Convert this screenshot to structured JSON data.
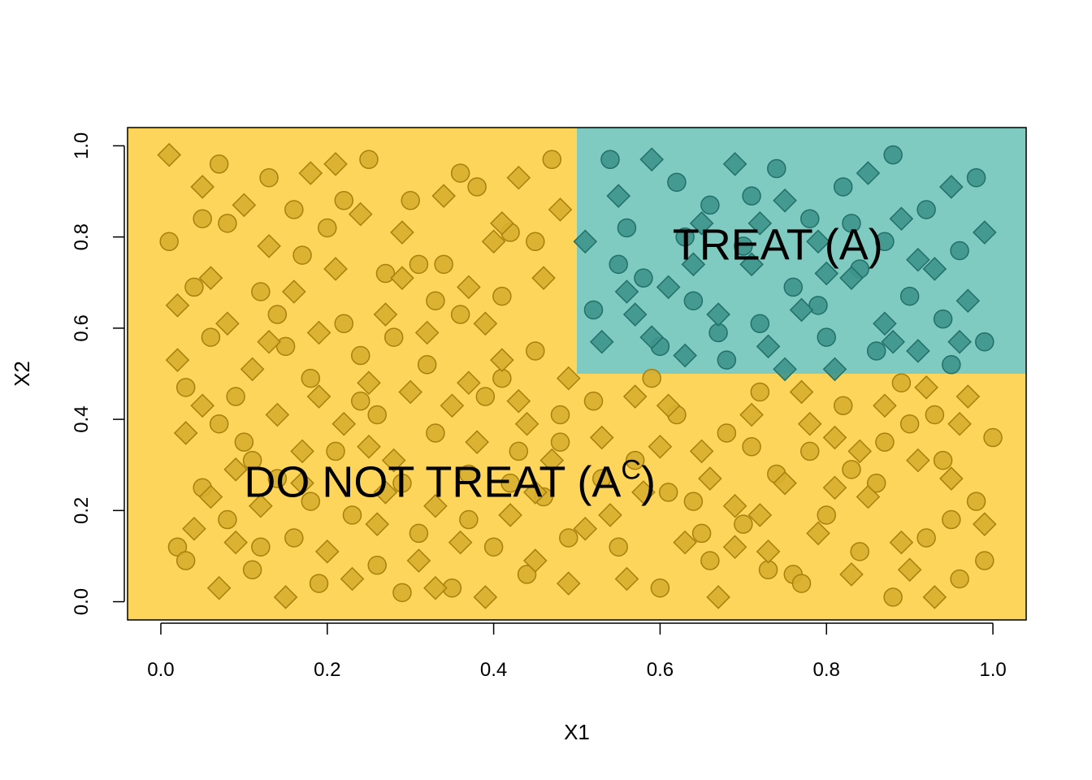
{
  "chart_data": {
    "type": "scatter",
    "title": "",
    "xlabel": "X1",
    "ylabel": "X2",
    "xlim": [
      -0.04,
      1.04
    ],
    "ylim": [
      -0.04,
      1.04
    ],
    "x_ticks": [
      "0.0",
      "0.2",
      "0.4",
      "0.6",
      "0.8",
      "1.0"
    ],
    "y_ticks": [
      "0.0",
      "0.2",
      "0.4",
      "0.6",
      "0.8",
      "1.0"
    ],
    "grid": false,
    "legend": "none",
    "regions": [
      {
        "label": "DO NOT TREAT (A",
        "superscript": "C",
        "label_end": ")",
        "x": [
          0.0,
          1.0
        ],
        "y": [
          0.0,
          1.0
        ],
        "color": "#FDD55A",
        "anchor_x": 0.1,
        "anchor_y": 0.23
      },
      {
        "label": "TREAT (A)",
        "x": [
          0.5,
          1.0
        ],
        "y": [
          0.5,
          1.0
        ],
        "color": "#7FCBC2",
        "anchor_x": 0.615,
        "anchor_y": 0.75
      }
    ],
    "point_colors": {
      "outside": {
        "fill": "#D8AE2E",
        "stroke": "#A8800C"
      },
      "inside": {
        "fill": "#3E958B",
        "stroke": "#22706A"
      }
    },
    "series": [
      {
        "marker": "circle",
        "points": [
          [
            0.01,
            0.79
          ],
          [
            0.02,
            0.12
          ],
          [
            0.03,
            0.09
          ],
          [
            0.04,
            0.69
          ],
          [
            0.05,
            0.84
          ],
          [
            0.05,
            0.25
          ],
          [
            0.06,
            0.58
          ],
          [
            0.07,
            0.39
          ],
          [
            0.08,
            0.83
          ],
          [
            0.09,
            0.45
          ],
          [
            0.1,
            0.35
          ],
          [
            0.11,
            0.07
          ],
          [
            0.12,
            0.68
          ],
          [
            0.13,
            0.93
          ],
          [
            0.14,
            0.27
          ],
          [
            0.15,
            0.56
          ],
          [
            0.16,
            0.14
          ],
          [
            0.17,
            0.76
          ],
          [
            0.18,
            0.49
          ],
          [
            0.19,
            0.04
          ],
          [
            0.2,
            0.82
          ],
          [
            0.21,
            0.33
          ],
          [
            0.22,
            0.61
          ],
          [
            0.23,
            0.19
          ],
          [
            0.24,
            0.44
          ],
          [
            0.25,
            0.97
          ],
          [
            0.26,
            0.08
          ],
          [
            0.27,
            0.72
          ],
          [
            0.28,
            0.58
          ],
          [
            0.29,
            0.26
          ],
          [
            0.3,
            0.88
          ],
          [
            0.31,
            0.15
          ],
          [
            0.32,
            0.52
          ],
          [
            0.33,
            0.37
          ],
          [
            0.34,
            0.74
          ],
          [
            0.35,
            0.03
          ],
          [
            0.36,
            0.63
          ],
          [
            0.37,
            0.28
          ],
          [
            0.38,
            0.91
          ],
          [
            0.39,
            0.45
          ],
          [
            0.4,
            0.12
          ],
          [
            0.41,
            0.67
          ],
          [
            0.42,
            0.81
          ],
          [
            0.43,
            0.33
          ],
          [
            0.44,
            0.06
          ],
          [
            0.45,
            0.55
          ],
          [
            0.46,
            0.23
          ],
          [
            0.47,
            0.97
          ],
          [
            0.48,
            0.41
          ],
          [
            0.49,
            0.14
          ],
          [
            0.03,
            0.47
          ],
          [
            0.07,
            0.96
          ],
          [
            0.11,
            0.31
          ],
          [
            0.14,
            0.63
          ],
          [
            0.18,
            0.22
          ],
          [
            0.22,
            0.88
          ],
          [
            0.26,
            0.41
          ],
          [
            0.29,
            0.02
          ],
          [
            0.33,
            0.66
          ],
          [
            0.37,
            0.18
          ],
          [
            0.41,
            0.49
          ],
          [
            0.45,
            0.79
          ],
          [
            0.48,
            0.35
          ],
          [
            0.12,
            0.12
          ],
          [
            0.24,
            0.54
          ],
          [
            0.36,
            0.94
          ],
          [
            0.08,
            0.18
          ],
          [
            0.42,
            0.26
          ],
          [
            0.16,
            0.86
          ],
          [
            0.31,
            0.74
          ],
          [
            0.52,
            0.44
          ],
          [
            0.55,
            0.12
          ],
          [
            0.57,
            0.31
          ],
          [
            0.6,
            0.03
          ],
          [
            0.62,
            0.41
          ],
          [
            0.64,
            0.22
          ],
          [
            0.66,
            0.09
          ],
          [
            0.68,
            0.37
          ],
          [
            0.7,
            0.17
          ],
          [
            0.72,
            0.46
          ],
          [
            0.74,
            0.28
          ],
          [
            0.76,
            0.06
          ],
          [
            0.78,
            0.33
          ],
          [
            0.8,
            0.19
          ],
          [
            0.82,
            0.43
          ],
          [
            0.84,
            0.11
          ],
          [
            0.86,
            0.26
          ],
          [
            0.88,
            0.01
          ],
          [
            0.9,
            0.39
          ],
          [
            0.92,
            0.14
          ],
          [
            0.94,
            0.31
          ],
          [
            0.96,
            0.05
          ],
          [
            0.98,
            0.22
          ],
          [
            1.0,
            0.36
          ],
          [
            0.53,
            0.27
          ],
          [
            0.59,
            0.49
          ],
          [
            0.65,
            0.15
          ],
          [
            0.71,
            0.34
          ],
          [
            0.77,
            0.04
          ],
          [
            0.83,
            0.29
          ],
          [
            0.89,
            0.48
          ],
          [
            0.95,
            0.18
          ],
          [
            0.99,
            0.09
          ],
          [
            0.61,
            0.24
          ],
          [
            0.73,
            0.07
          ],
          [
            0.87,
            0.35
          ],
          [
            0.93,
            0.41
          ],
          [
            0.52,
            0.64
          ],
          [
            0.54,
            0.97
          ],
          [
            0.56,
            0.82
          ],
          [
            0.58,
            0.71
          ],
          [
            0.6,
            0.56
          ],
          [
            0.62,
            0.92
          ],
          [
            0.64,
            0.66
          ],
          [
            0.66,
            0.87
          ],
          [
            0.68,
            0.53
          ],
          [
            0.7,
            0.78
          ],
          [
            0.72,
            0.61
          ],
          [
            0.74,
            0.95
          ],
          [
            0.76,
            0.69
          ],
          [
            0.78,
            0.84
          ],
          [
            0.8,
            0.58
          ],
          [
            0.82,
            0.91
          ],
          [
            0.84,
            0.73
          ],
          [
            0.86,
            0.55
          ],
          [
            0.88,
            0.98
          ],
          [
            0.9,
            0.67
          ],
          [
            0.92,
            0.86
          ],
          [
            0.94,
            0.62
          ],
          [
            0.96,
            0.77
          ],
          [
            0.98,
            0.93
          ],
          [
            0.99,
            0.57
          ],
          [
            0.55,
            0.74
          ],
          [
            0.63,
            0.8
          ],
          [
            0.71,
            0.89
          ],
          [
            0.79,
            0.65
          ],
          [
            0.87,
            0.79
          ],
          [
            0.95,
            0.52
          ],
          [
            0.67,
            0.59
          ],
          [
            0.83,
            0.83
          ]
        ]
      },
      {
        "marker": "diamond",
        "points": [
          [
            0.01,
            0.98
          ],
          [
            0.02,
            0.53
          ],
          [
            0.03,
            0.37
          ],
          [
            0.04,
            0.16
          ],
          [
            0.05,
            0.91
          ],
          [
            0.06,
            0.71
          ],
          [
            0.07,
            0.03
          ],
          [
            0.08,
            0.61
          ],
          [
            0.09,
            0.29
          ],
          [
            0.1,
            0.87
          ],
          [
            0.11,
            0.51
          ],
          [
            0.12,
            0.21
          ],
          [
            0.13,
            0.78
          ],
          [
            0.14,
            0.41
          ],
          [
            0.15,
            0.01
          ],
          [
            0.16,
            0.68
          ],
          [
            0.17,
            0.33
          ],
          [
            0.18,
            0.94
          ],
          [
            0.19,
            0.59
          ],
          [
            0.2,
            0.11
          ],
          [
            0.21,
            0.73
          ],
          [
            0.22,
            0.39
          ],
          [
            0.23,
            0.05
          ],
          [
            0.24,
            0.85
          ],
          [
            0.25,
            0.48
          ],
          [
            0.26,
            0.17
          ],
          [
            0.27,
            0.63
          ],
          [
            0.28,
            0.31
          ],
          [
            0.29,
            0.81
          ],
          [
            0.3,
            0.46
          ],
          [
            0.31,
            0.09
          ],
          [
            0.32,
            0.59
          ],
          [
            0.33,
            0.21
          ],
          [
            0.34,
            0.89
          ],
          [
            0.35,
            0.43
          ],
          [
            0.36,
            0.13
          ],
          [
            0.37,
            0.69
          ],
          [
            0.38,
            0.35
          ],
          [
            0.39,
            0.01
          ],
          [
            0.4,
            0.79
          ],
          [
            0.41,
            0.53
          ],
          [
            0.42,
            0.19
          ],
          [
            0.43,
            0.93
          ],
          [
            0.44,
            0.39
          ],
          [
            0.45,
            0.09
          ],
          [
            0.46,
            0.71
          ],
          [
            0.47,
            0.31
          ],
          [
            0.48,
            0.86
          ],
          [
            0.49,
            0.49
          ],
          [
            0.49,
            0.04
          ],
          [
            0.05,
            0.43
          ],
          [
            0.09,
            0.13
          ],
          [
            0.13,
            0.57
          ],
          [
            0.17,
            0.26
          ],
          [
            0.21,
            0.96
          ],
          [
            0.25,
            0.34
          ],
          [
            0.29,
            0.71
          ],
          [
            0.33,
            0.03
          ],
          [
            0.37,
            0.48
          ],
          [
            0.41,
            0.83
          ],
          [
            0.45,
            0.24
          ],
          [
            0.02,
            0.65
          ],
          [
            0.06,
            0.23
          ],
          [
            0.19,
            0.45
          ],
          [
            0.27,
            0.24
          ],
          [
            0.39,
            0.61
          ],
          [
            0.43,
            0.44
          ],
          [
            0.51,
            0.16
          ],
          [
            0.53,
            0.36
          ],
          [
            0.56,
            0.05
          ],
          [
            0.58,
            0.24
          ],
          [
            0.61,
            0.43
          ],
          [
            0.63,
            0.13
          ],
          [
            0.65,
            0.33
          ],
          [
            0.67,
            0.01
          ],
          [
            0.69,
            0.21
          ],
          [
            0.71,
            0.41
          ],
          [
            0.73,
            0.11
          ],
          [
            0.75,
            0.26
          ],
          [
            0.77,
            0.46
          ],
          [
            0.79,
            0.15
          ],
          [
            0.81,
            0.36
          ],
          [
            0.83,
            0.06
          ],
          [
            0.85,
            0.23
          ],
          [
            0.87,
            0.43
          ],
          [
            0.89,
            0.13
          ],
          [
            0.91,
            0.31
          ],
          [
            0.93,
            0.01
          ],
          [
            0.95,
            0.27
          ],
          [
            0.97,
            0.45
          ],
          [
            0.99,
            0.17
          ],
          [
            0.54,
            0.19
          ],
          [
            0.6,
            0.34
          ],
          [
            0.66,
            0.27
          ],
          [
            0.72,
            0.19
          ],
          [
            0.78,
            0.39
          ],
          [
            0.84,
            0.33
          ],
          [
            0.9,
            0.07
          ],
          [
            0.96,
            0.39
          ],
          [
            0.57,
            0.45
          ],
          [
            0.69,
            0.12
          ],
          [
            0.81,
            0.25
          ],
          [
            0.92,
            0.47
          ],
          [
            0.51,
            0.79
          ],
          [
            0.53,
            0.57
          ],
          [
            0.55,
            0.89
          ],
          [
            0.57,
            0.63
          ],
          [
            0.59,
            0.97
          ],
          [
            0.61,
            0.69
          ],
          [
            0.63,
            0.54
          ],
          [
            0.65,
            0.83
          ],
          [
            0.67,
            0.63
          ],
          [
            0.69,
            0.96
          ],
          [
            0.71,
            0.74
          ],
          [
            0.73,
            0.56
          ],
          [
            0.75,
            0.88
          ],
          [
            0.77,
            0.64
          ],
          [
            0.79,
            0.79
          ],
          [
            0.81,
            0.51
          ],
          [
            0.83,
            0.71
          ],
          [
            0.85,
            0.94
          ],
          [
            0.87,
            0.61
          ],
          [
            0.89,
            0.84
          ],
          [
            0.91,
            0.55
          ],
          [
            0.93,
            0.73
          ],
          [
            0.95,
            0.91
          ],
          [
            0.97,
            0.66
          ],
          [
            0.99,
            0.81
          ],
          [
            0.56,
            0.68
          ],
          [
            0.64,
            0.74
          ],
          [
            0.72,
            0.83
          ],
          [
            0.8,
            0.72
          ],
          [
            0.88,
            0.57
          ],
          [
            0.96,
            0.57
          ],
          [
            0.59,
            0.58
          ],
          [
            0.75,
            0.51
          ],
          [
            0.91,
            0.75
          ]
        ]
      }
    ]
  }
}
